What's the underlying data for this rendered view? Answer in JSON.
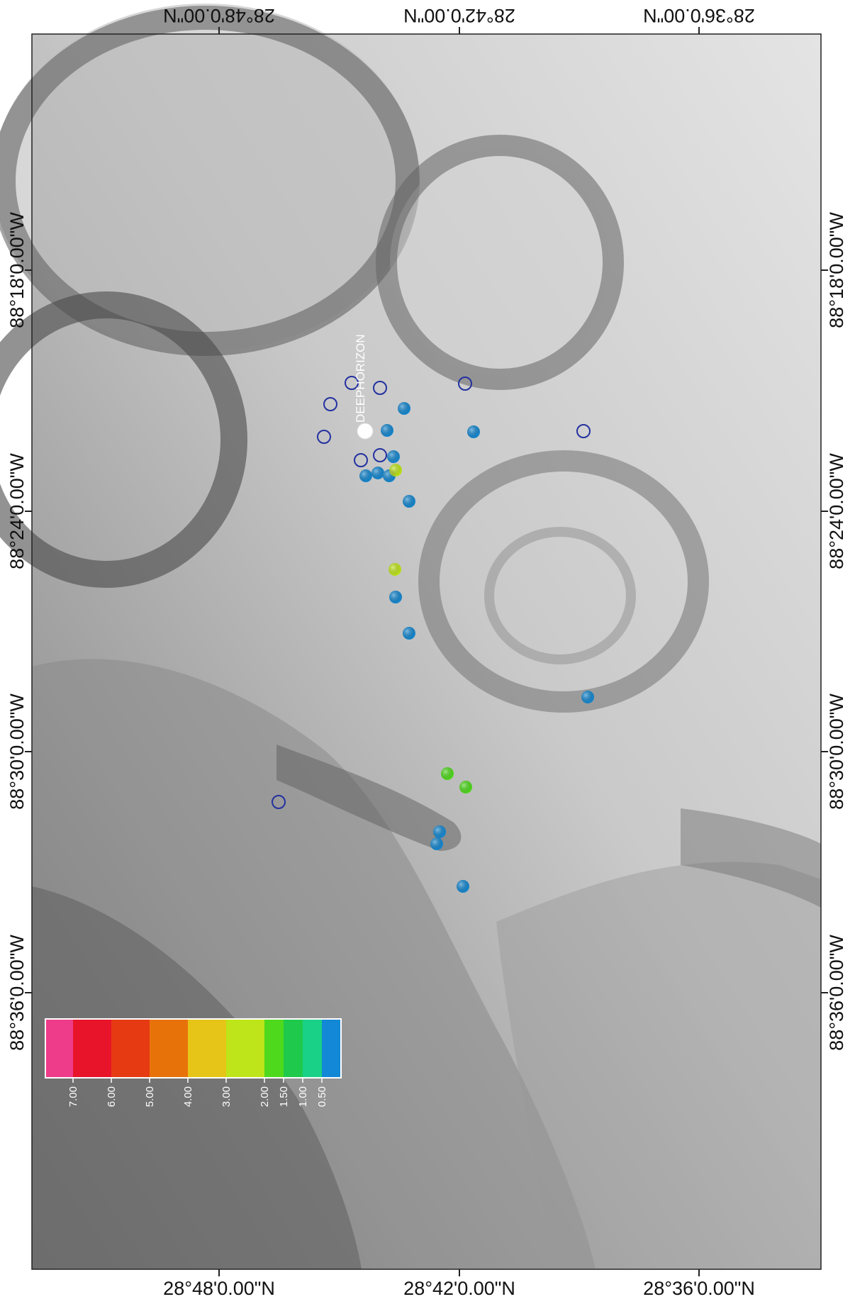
{
  "map": {
    "coordinate_labels": {
      "top": [
        "28°48'0.00\"N",
        "28°42'0.00\"N",
        "28°36'0.00\"N"
      ],
      "bottom": [
        "28°48'0.00\"N",
        "28°42'0.00\"N",
        "28°36'0.00\"N"
      ],
      "left": [
        "88°18'0.00\"W",
        "88°24'0.00\"W",
        "88°30'0.00\"W",
        "88°36'0.00\"W"
      ],
      "right": [
        "88°18'0.00\"W",
        "88°24'0.00\"W",
        "88°30'0.00\"W",
        "88°36'0.00\"W"
      ]
    },
    "station_label": "DEEPHORIZON",
    "legend": {
      "ticks": [
        "7.00",
        "6.00",
        "5.00",
        "4.00",
        "3.00",
        "2.00",
        "1.50",
        "1.00",
        "0.50"
      ],
      "colors": [
        "#ee3b8a",
        "#e8142a",
        "#e63a13",
        "#e8720a",
        "#e6c418",
        "#bde51a",
        "#4fd91c",
        "#1fc94b",
        "#1ad188",
        "#1388d6"
      ]
    },
    "colors": {
      "blue_marker": "#1587cf",
      "open_marker": "#2431a0",
      "yellow_green_marker": "#bde51a",
      "green_marker": "#4fd91c",
      "station_marker": "#ffffff"
    }
  }
}
